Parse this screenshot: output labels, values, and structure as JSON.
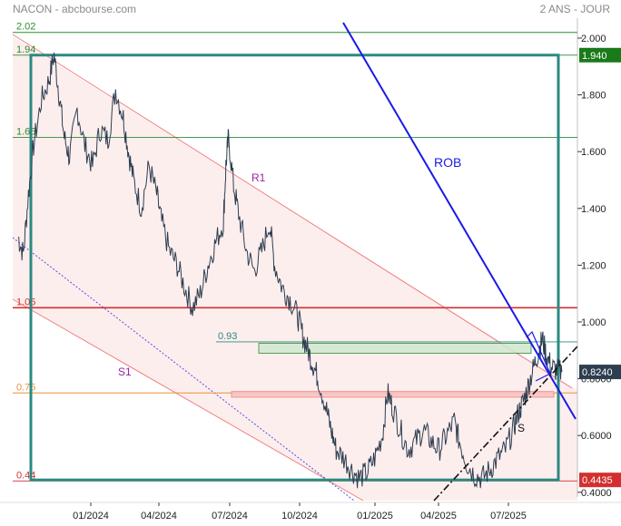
{
  "header": {
    "left": "NACON - abcbourse.com",
    "right": "2 ANS - JOUR"
  },
  "colors": {
    "price": "#2c3e50",
    "rob": "#1a1ae6",
    "channel": "#f08080",
    "channel_fill": "#fdeeee",
    "frame": "#2a8a80",
    "resistance": "#d32f2f",
    "green_level": "#2e8b2e",
    "support": "#111111",
    "orange_level": "#e8913a",
    "zone_green": "#cfe8cf",
    "zone_pink": "#f6c2c2"
  },
  "chart_data": {
    "type": "line",
    "title": "NACON",
    "x_ticks": [
      "01/2024",
      "04/2024",
      "07/2024",
      "10/2024",
      "01/2025",
      "04/2025",
      "07/2025"
    ],
    "y_ticks": [
      "2.000",
      "1.800",
      "1.600",
      "1.400",
      "1.200",
      "1.000",
      "0.8000",
      "0.6000",
      "0.4000"
    ],
    "ylim": [
      0.38,
      2.09
    ],
    "y_scale": "linear",
    "grid": false,
    "price_badges": [
      {
        "label": "1.940",
        "value": 1.94,
        "color": "#1a7a1a"
      },
      {
        "label": "0.8240",
        "value": 0.824,
        "color": "#2c3e50"
      },
      {
        "label": "0.4435",
        "value": 0.4435,
        "color": "#d32f2f"
      }
    ],
    "levels": [
      {
        "label": "2.02",
        "value": 2.02,
        "color": "#2e8b2e"
      },
      {
        "label": "1.94",
        "value": 1.94,
        "color": "#2e8b2e"
      },
      {
        "label": "1.65",
        "value": 1.65,
        "color": "#2e8b2e"
      },
      {
        "label": "1.05",
        "value": 1.05,
        "color": "#d32f2f"
      },
      {
        "label": "0.93",
        "value": 0.93,
        "color": "#2a8a80"
      },
      {
        "label": "0.75",
        "value": 0.75,
        "color": "#e8913a"
      },
      {
        "label": "0.44",
        "value": 0.44,
        "color": "#d32f2f"
      }
    ],
    "annotations": [
      {
        "text": "R1",
        "color": "#a020a0"
      },
      {
        "text": "S1",
        "color": "#a020a0"
      },
      {
        "text": "ROB",
        "color": "#1a1ae6"
      },
      {
        "text": "S",
        "color": "#111111"
      }
    ],
    "series": [
      {
        "values": [
          [
            0.0,
            1.3
          ],
          [
            0.01,
            1.24
          ],
          [
            0.02,
            1.45
          ],
          [
            0.03,
            1.62
          ],
          [
            0.045,
            1.78
          ],
          [
            0.06,
            1.85
          ],
          [
            0.07,
            1.94
          ],
          [
            0.08,
            1.8
          ],
          [
            0.09,
            1.65
          ],
          [
            0.1,
            1.58
          ],
          [
            0.115,
            1.75
          ],
          [
            0.13,
            1.62
          ],
          [
            0.145,
            1.55
          ],
          [
            0.16,
            1.68
          ],
          [
            0.175,
            1.64
          ],
          [
            0.19,
            1.82
          ],
          [
            0.205,
            1.72
          ],
          [
            0.215,
            1.6
          ],
          [
            0.225,
            1.5
          ],
          [
            0.24,
            1.4
          ],
          [
            0.255,
            1.55
          ],
          [
            0.27,
            1.45
          ],
          [
            0.28,
            1.35
          ],
          [
            0.295,
            1.25
          ],
          [
            0.31,
            1.2
          ],
          [
            0.325,
            1.12
          ],
          [
            0.34,
            1.05
          ],
          [
            0.355,
            1.1
          ],
          [
            0.37,
            1.2
          ],
          [
            0.385,
            1.28
          ],
          [
            0.4,
            1.35
          ],
          [
            0.405,
            1.55
          ],
          [
            0.41,
            1.65
          ],
          [
            0.42,
            1.48
          ],
          [
            0.43,
            1.38
          ],
          [
            0.445,
            1.25
          ],
          [
            0.46,
            1.18
          ],
          [
            0.475,
            1.25
          ],
          [
            0.49,
            1.35
          ],
          [
            0.5,
            1.2
          ],
          [
            0.515,
            1.12
          ],
          [
            0.53,
            1.08
          ],
          [
            0.545,
            1.02
          ],
          [
            0.555,
            0.95
          ],
          [
            0.565,
            0.9
          ],
          [
            0.575,
            0.85
          ],
          [
            0.585,
            0.8
          ],
          [
            0.6,
            0.7
          ],
          [
            0.61,
            0.62
          ],
          [
            0.62,
            0.55
          ],
          [
            0.635,
            0.52
          ],
          [
            0.65,
            0.48
          ],
          [
            0.665,
            0.45
          ],
          [
            0.68,
            0.47
          ],
          [
            0.695,
            0.52
          ],
          [
            0.71,
            0.6
          ],
          [
            0.72,
            0.75
          ],
          [
            0.73,
            0.7
          ],
          [
            0.745,
            0.62
          ],
          [
            0.76,
            0.55
          ],
          [
            0.775,
            0.58
          ],
          [
            0.79,
            0.62
          ],
          [
            0.805,
            0.58
          ],
          [
            0.82,
            0.55
          ],
          [
            0.835,
            0.6
          ],
          [
            0.85,
            0.65
          ],
          [
            0.86,
            0.58
          ],
          [
            0.875,
            0.5
          ],
          [
            0.89,
            0.46
          ],
          [
            0.905,
            0.45
          ],
          [
            0.92,
            0.48
          ],
          [
            0.935,
            0.52
          ],
          [
            0.95,
            0.55
          ],
          [
            0.965,
            0.62
          ],
          [
            0.975,
            0.68
          ],
          [
            0.985,
            0.72
          ],
          [
            0.995,
            0.78
          ],
          [
            1.005,
            0.84
          ],
          [
            1.015,
            0.9
          ],
          [
            1.022,
            0.94
          ],
          [
            1.03,
            0.88
          ],
          [
            1.04,
            0.84
          ],
          [
            1.05,
            0.83
          ],
          [
            1.06,
            0.824
          ]
        ]
      }
    ]
  }
}
